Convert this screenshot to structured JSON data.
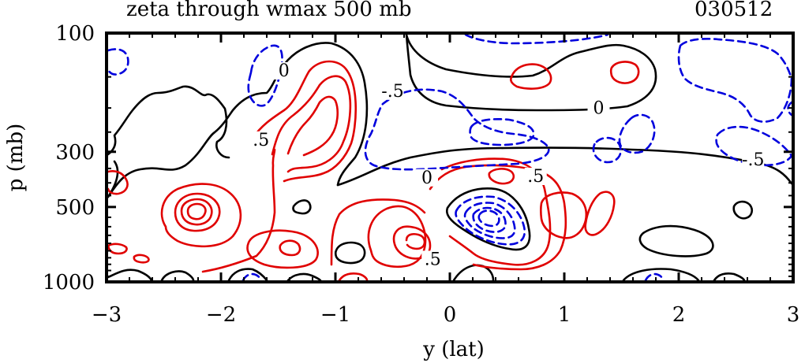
{
  "chart_data": {
    "type": "contour",
    "title": "zeta through wmax 500 mb",
    "date_label": "030512",
    "xlabel": "y (lat)",
    "ylabel": "p (mb)",
    "xlim": [
      -3,
      3
    ],
    "ylim": [
      100,
      1000
    ],
    "y_scale": "log",
    "x_ticks": [
      -3,
      -2,
      -1,
      0,
      1,
      2,
      3
    ],
    "x_tick_labels": [
      "−3",
      "−2",
      "−1",
      "0",
      "1",
      "2",
      "3"
    ],
    "y_ticks": [
      100,
      300,
      500,
      1000
    ],
    "y_tick_labels": [
      "100",
      "300",
      "500",
      "1000"
    ],
    "contour_colors": {
      "positive": "#e00000",
      "zero": "#000000",
      "negative": "#0000dd"
    },
    "contour_labels": [
      {
        "text": "0",
        "x": -1.45,
        "p": 145
      },
      {
        "text": ".5",
        "x": -1.65,
        "p": 275
      },
      {
        "text": "-.5",
        "x": -0.5,
        "p": 175
      },
      {
        "text": "0",
        "x": 1.3,
        "p": 205
      },
      {
        "text": "0",
        "x": -0.2,
        "p": 390
      },
      {
        "text": ".5",
        "x": 0.75,
        "p": 385
      },
      {
        "text": ".5",
        "x": -0.15,
        "p": 830
      },
      {
        "text": "-.5",
        "x": 2.65,
        "p": 330
      }
    ]
  }
}
